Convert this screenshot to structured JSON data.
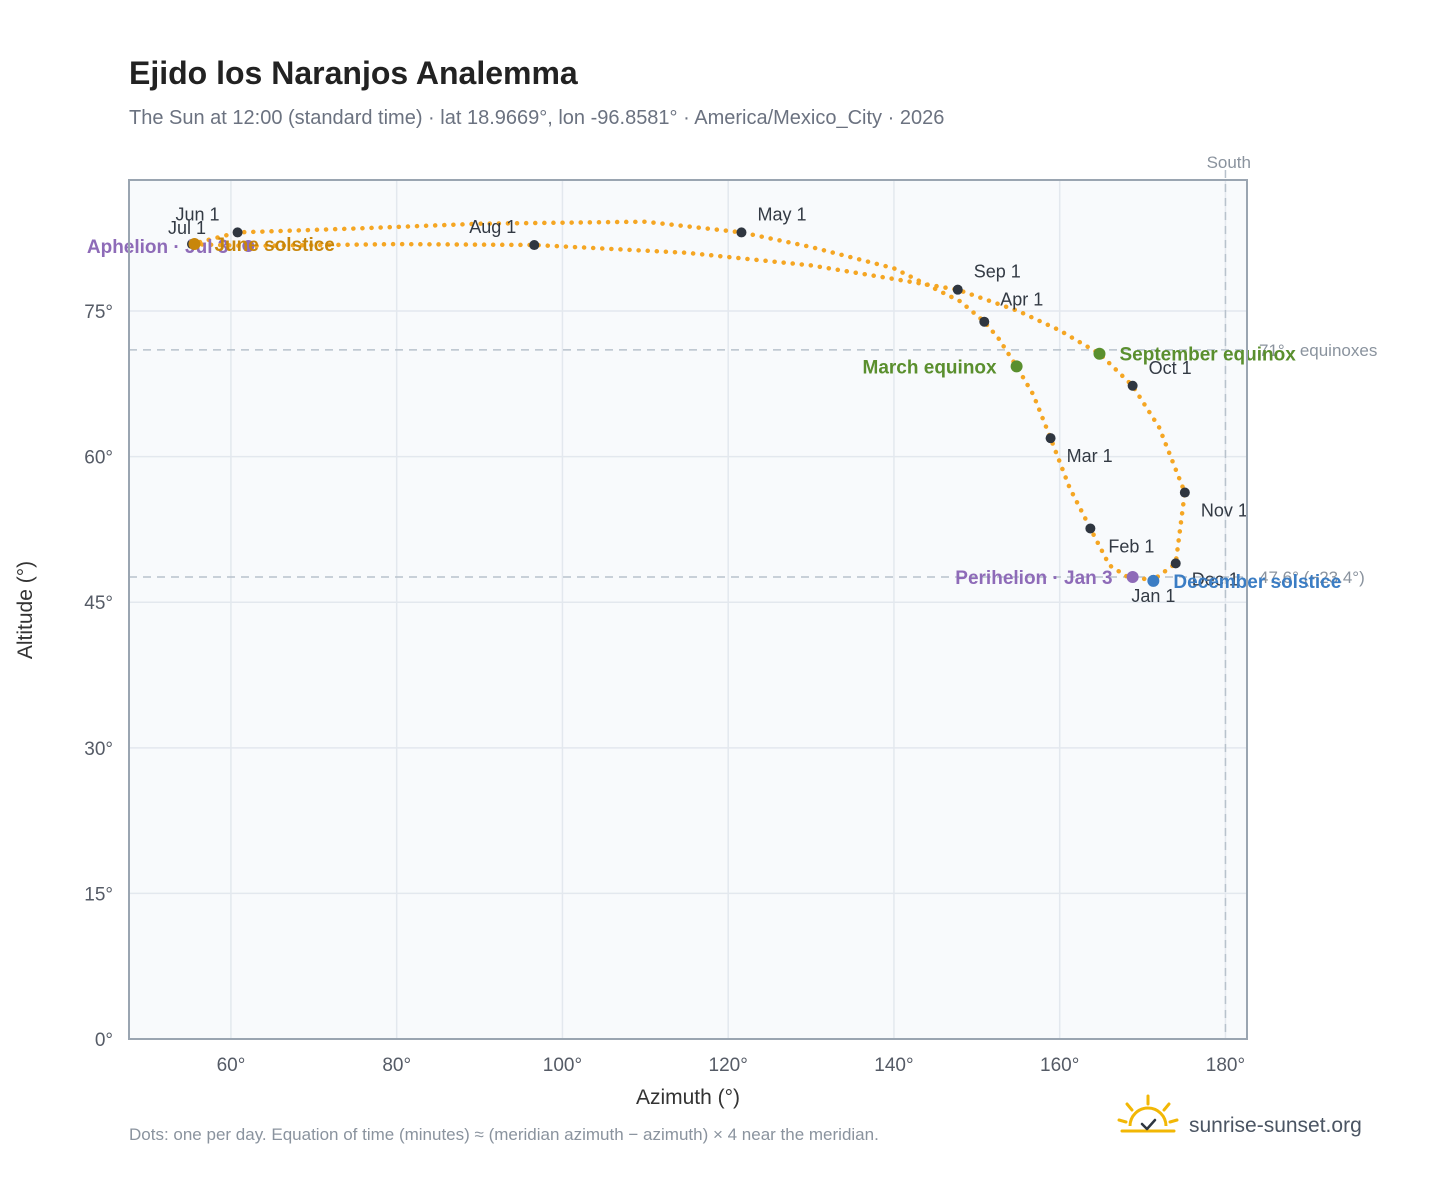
{
  "title": "Ejido los Naranjos Analemma",
  "subtitle": "The Sun at 12:00 (standard time) · lat 18.9669°, lon -96.8581° · America/Mexico_City · 2026",
  "footnote": "Dots: one per day. Equation of time (minutes) ≈ (meridian azimuth − azimuth) × 4 near the meridian.",
  "brand": "sunrise-sunset.org",
  "colors": {
    "analemma": "#f5a623",
    "month_dot": "#2f3640",
    "equinox": "#5a8f2e",
    "solstice_summer": "#c8860a",
    "solstice_winter": "#3b7dc4",
    "apsis": "#8e6bb8",
    "grid": "#e3e8ee",
    "plot_bg": "#f8fafc",
    "frame": "#9aa5b1",
    "refline": "#b8c2cc"
  },
  "chart_data": {
    "type": "scatter",
    "xlabel": "Azimuth (°)",
    "ylabel": "Altitude (°)",
    "xlim": [
      47.7,
      182.6
    ],
    "ylim": [
      0,
      88.5
    ],
    "x_ticks": [
      60,
      80,
      100,
      120,
      140,
      160,
      180
    ],
    "x_tick_labels": [
      "60°",
      "80°",
      "100°",
      "120°",
      "140°",
      "160°",
      "180°"
    ],
    "y_ticks": [
      0,
      15,
      30,
      45,
      60,
      75
    ],
    "y_tick_labels": [
      "0°",
      "15°",
      "30°",
      "45°",
      "60°",
      "75°"
    ],
    "grid": true,
    "south_line": {
      "azimuth": 180,
      "label": "South"
    },
    "ref_lines": [
      {
        "altitude": 71.0,
        "label": "71° · equinoxes"
      },
      {
        "altitude": 47.6,
        "label": "47.6° (−23.4°)"
      }
    ],
    "analemma_path": [
      [
        171.3,
        47.3
      ],
      [
        168.2,
        47.6
      ],
      [
        166.0,
        48.8
      ],
      [
        163.7,
        52.6
      ],
      [
        161.2,
        56.8
      ],
      [
        158.9,
        61.9
      ],
      [
        156.8,
        66.4
      ],
      [
        154.8,
        69.3
      ],
      [
        152.6,
        72.2
      ],
      [
        150.9,
        73.9
      ],
      [
        148.0,
        76.0
      ],
      [
        140.0,
        79.4
      ],
      [
        130.0,
        81.6
      ],
      [
        121.6,
        83.1
      ],
      [
        110.0,
        84.2
      ],
      [
        90.0,
        84.0
      ],
      [
        75.0,
        83.5
      ],
      [
        60.8,
        83.1
      ],
      [
        55.3,
        81.9
      ],
      [
        62.1,
        81.7
      ],
      [
        80.0,
        81.9
      ],
      [
        96.6,
        81.8
      ],
      [
        115.0,
        81.0
      ],
      [
        130.0,
        79.7
      ],
      [
        140.0,
        78.3
      ],
      [
        147.7,
        77.2
      ],
      [
        155.0,
        75.0
      ],
      [
        160.0,
        73.0
      ],
      [
        164.8,
        70.6
      ],
      [
        168.8,
        67.3
      ],
      [
        172.0,
        63.0
      ],
      [
        175.1,
        56.3
      ],
      [
        174.0,
        49.0
      ],
      [
        171.3,
        47.3
      ]
    ],
    "month_markers": [
      {
        "label": "Jan 1",
        "azimuth": 171.3,
        "altitude": 47.3
      },
      {
        "label": "Feb 1",
        "azimuth": 163.7,
        "altitude": 52.6
      },
      {
        "label": "Mar 1",
        "azimuth": 158.9,
        "altitude": 61.9
      },
      {
        "label": "Apr 1",
        "azimuth": 150.9,
        "altitude": 73.9
      },
      {
        "label": "May 1",
        "azimuth": 121.6,
        "altitude": 83.1
      },
      {
        "label": "Jun 1",
        "azimuth": 60.8,
        "altitude": 83.1
      },
      {
        "label": "Jul 1",
        "azimuth": 55.3,
        "altitude": 81.9
      },
      {
        "label": "Aug 1",
        "azimuth": 96.6,
        "altitude": 81.8
      },
      {
        "label": "Sep 1",
        "azimuth": 147.7,
        "altitude": 77.2
      },
      {
        "label": "Oct 1",
        "azimuth": 168.8,
        "altitude": 67.3
      },
      {
        "label": "Nov 1",
        "azimuth": 175.1,
        "altitude": 56.3
      },
      {
        "label": "Dec 1",
        "azimuth": 174.0,
        "altitude": 49.0
      }
    ],
    "events": [
      {
        "label": "Aphelion · Jul 3",
        "azimuth": 62.1,
        "altitude": 81.7,
        "color": "#8e6bb8",
        "side": "left"
      },
      {
        "label": "June solstice",
        "azimuth": 55.6,
        "altitude": 81.9,
        "color": "#c8860a",
        "side": "right"
      },
      {
        "label": "March equinox",
        "azimuth": 154.8,
        "altitude": 69.3,
        "color": "#5a8f2e",
        "side": "left"
      },
      {
        "label": "September equinox",
        "azimuth": 164.8,
        "altitude": 70.6,
        "color": "#5a8f2e",
        "side": "right"
      },
      {
        "label": "Perihelion · Jan 3",
        "azimuth": 168.8,
        "altitude": 47.6,
        "color": "#8e6bb8",
        "side": "left"
      },
      {
        "label": "December solstice",
        "azimuth": 171.3,
        "altitude": 47.2,
        "color": "#3b7dc4",
        "side": "right"
      }
    ]
  }
}
